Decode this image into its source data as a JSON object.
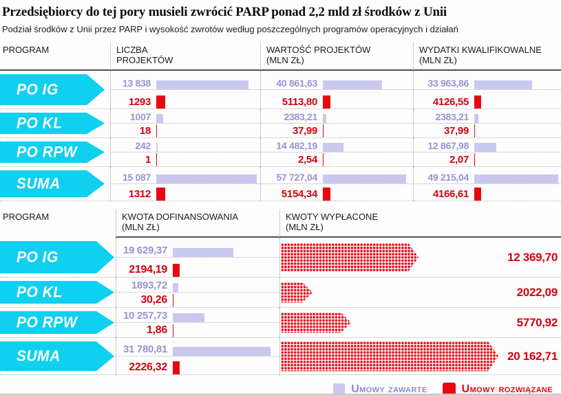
{
  "header": {
    "title": "Przedsiębiorcy do tej pory musieli zwrócić PARP ponad 2,2 mld zł środków z Unii",
    "subtitle": "Podział środków z Unii przez PARP i wysokość zwrotów według poszczególnych programów operacyjnych i działań"
  },
  "table1": {
    "headers": {
      "program": "PROGRAM",
      "liczba_l1": "LICZBA",
      "liczba_l2": "PROJEKTÓW",
      "wartosc_l1": "WARTOŚĆ PROJEKTÓW",
      "wartosc_l2": "(MLN ZŁ)",
      "wydatki_l1": "WYDATKI KWALIFIKOWALNE",
      "wydatki_l2": "(MLN ZŁ)"
    },
    "rows": [
      {
        "program": "PO IG",
        "liczba_z": "13 838",
        "liczba_r": "1293",
        "wartosc_z": "40 861,63",
        "wartosc_r": "5113,80",
        "wydatki_z": "33 963,86",
        "wydatki_r": "4126,55"
      },
      {
        "program": "PO KL",
        "liczba_z": "1007",
        "liczba_r": "18",
        "wartosc_z": "2383,21",
        "wartosc_r": "37,99",
        "wydatki_z": "2383,21",
        "wydatki_r": "37,99"
      },
      {
        "program": "PO RPW",
        "liczba_z": "242",
        "liczba_r": "1",
        "wartosc_z": "14 482,19",
        "wartosc_r": "2,54",
        "wydatki_z": "12 867,98",
        "wydatki_r": "2,07"
      },
      {
        "program": "SUMA",
        "liczba_z": "15 087",
        "liczba_r": "1312",
        "wartosc_z": "57 727,04",
        "wartosc_r": "5154,34",
        "wydatki_z": "49 215,04",
        "wydatki_r": "4166,61"
      }
    ]
  },
  "table2": {
    "headers": {
      "program": "PROGRAM",
      "kwota_l1": "KWOTA DOFINANSOWANIA",
      "kwota_l2": "(MLN ZŁ)",
      "wyplacone_l1": "KWOTY WYPŁACONE",
      "wyplacone_l2": "(MLN ZŁ)"
    },
    "rows": [
      {
        "program": "PO IG",
        "kwota_z": "19 629,37",
        "kwota_r": "2194,19",
        "wyplacone": "12 369,70"
      },
      {
        "program": "PO KL",
        "kwota_z": "1893,72",
        "kwota_r": "30,26",
        "wyplacone": "2022,09"
      },
      {
        "program": "PO RPW",
        "kwota_z": "10 257,73",
        "kwota_r": "1,86",
        "wyplacone": "5770,92"
      },
      {
        "program": "SUMA",
        "kwota_z": "31 780,81",
        "kwota_r": "2226,32",
        "wyplacone": "20 162,71"
      }
    ]
  },
  "legend": {
    "zawarte": "Umowy zawarte",
    "rozwiazane": "Umowy rozwiązane"
  },
  "colors": {
    "program_arrow": "#0fd0ef",
    "bar_zawarte": "#c9c8ef",
    "bar_rozwiazane": "#e90711",
    "num_zawarte": "#9693d6",
    "num_rozwiazane": "#d2020f"
  },
  "chart_data": [
    {
      "type": "bar",
      "title": "Podział środków z Unii przez PARP i wysokość zwrotów — programy operacyjne",
      "categories": [
        "PO IG",
        "PO KL",
        "PO RPW",
        "SUMA"
      ],
      "series": [
        {
          "name": "Liczba projektów — umowy zawarte",
          "values": [
            13838,
            1007,
            242,
            15087
          ]
        },
        {
          "name": "Liczba projektów — umowy rozwiązane",
          "values": [
            1293,
            18,
            1,
            1312
          ]
        },
        {
          "name": "Wartość projektów (mln zł) — umowy zawarte",
          "values": [
            40861.63,
            2383.21,
            14482.19,
            57727.04
          ]
        },
        {
          "name": "Wartość projektów (mln zł) — umowy rozwiązane",
          "values": [
            5113.8,
            37.99,
            2.54,
            5154.34
          ]
        },
        {
          "name": "Wydatki kwalifikowalne (mln zł) — umowy zawarte",
          "values": [
            33963.86,
            2383.21,
            12867.98,
            49215.04
          ]
        },
        {
          "name": "Wydatki kwalifikowalne (mln zł) — umowy rozwiązane",
          "values": [
            4126.55,
            37.99,
            2.07,
            4166.61
          ]
        }
      ],
      "legend_position": "bottom",
      "grid": false
    },
    {
      "type": "bar",
      "title": "Kwota dofinansowania i kwoty wypłacone",
      "categories": [
        "PO IG",
        "PO KL",
        "PO RPW",
        "SUMA"
      ],
      "series": [
        {
          "name": "Kwota dofinansowania (mln zł) — umowy zawarte",
          "values": [
            19629.37,
            1893.72,
            10257.73,
            31780.81
          ]
        },
        {
          "name": "Kwota dofinansowania (mln zł) — umowy rozwiązane",
          "values": [
            2194.19,
            30.26,
            1.86,
            2226.32
          ]
        },
        {
          "name": "Kwoty wypłacone (mln zł)",
          "values": [
            12369.7,
            2022.09,
            5770.92,
            20162.71
          ]
        }
      ],
      "legend_position": "bottom",
      "grid": false
    }
  ]
}
